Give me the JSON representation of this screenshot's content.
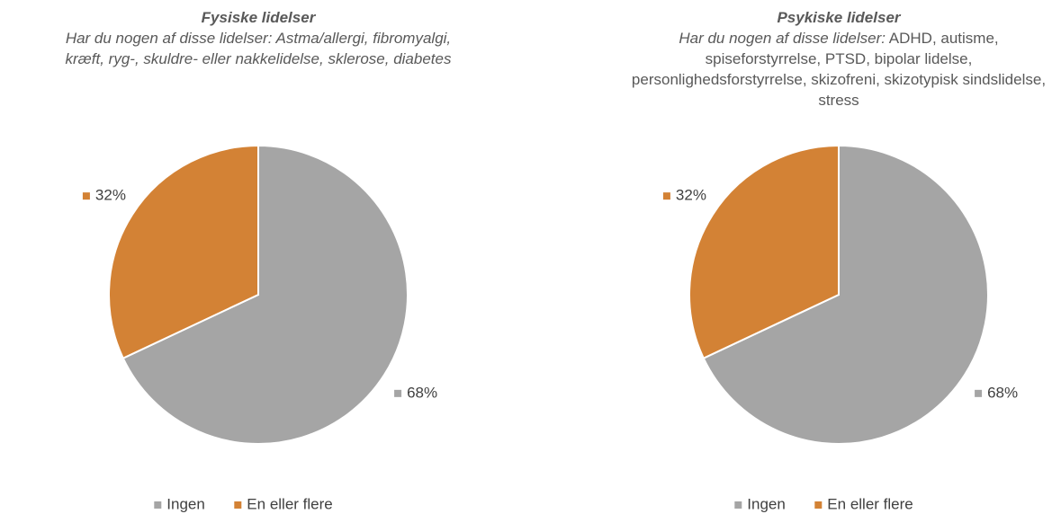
{
  "chart_data": [
    {
      "type": "pie",
      "title": "Fysiske lidelser",
      "subtitle": "Har du nogen af disse lidelser: Astma/allergi, fibromyalgi, kræft, ryg-, skuldre- eller nakkelidelse, sklerose, diabetes",
      "categories": [
        "Ingen",
        "En eller flere"
      ],
      "values": [
        68,
        32
      ],
      "value_labels": [
        "68%",
        "32%"
      ],
      "colors": [
        "#a5a5a5",
        "#d38235"
      ],
      "legend": "bottom"
    },
    {
      "type": "pie",
      "title": "Psykiske lidelser",
      "subtitle": "Har du nogen af disse lidelser:",
      "subtitle_detail": "ADHD, autisme, spiseforstyrrelse, PTSD, bipolar lidelse, personlighedsforstyrrelse, skizofreni, skizotypisk sindslidelse, stress",
      "categories": [
        "Ingen",
        "En eller flere"
      ],
      "values": [
        68,
        32
      ],
      "value_labels": [
        "68%",
        "32%"
      ],
      "colors": [
        "#a5a5a5",
        "#d38235"
      ],
      "legend": "bottom"
    }
  ]
}
